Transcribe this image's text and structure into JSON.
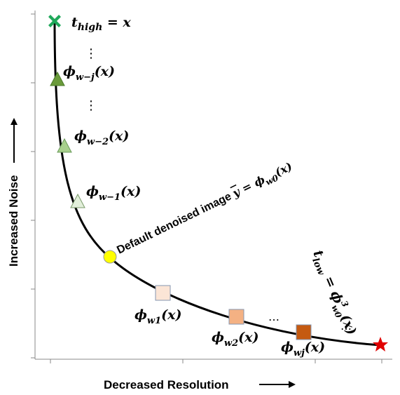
{
  "axes": {
    "x_title": "Decreased Resolution",
    "y_title": "Increased Noise"
  },
  "labels": {
    "t_high": "t",
    "t_high_sub": "high",
    "t_high_eq": " = x",
    "phi_wmj": "ϕ",
    "phi_wmj_sub": "w−j",
    "phi_wmj_arg": "(x)",
    "phi_wm2": "ϕ",
    "phi_wm2_sub": "w−2",
    "phi_wm2_arg": "(x)",
    "phi_wm1": "ϕ",
    "phi_wm1_sub": "w−1",
    "phi_wm1_arg": "(x)",
    "default_text": "Default denoised image ",
    "default_ybar": "y",
    "default_eq": " = ϕ",
    "default_sub": "w0",
    "default_arg": "(x)",
    "phi_w1": "ϕ",
    "phi_w1_sub": "w1",
    "phi_w1_arg": "(x)",
    "phi_w2": "ϕ",
    "phi_w2_sub": "w2",
    "phi_w2_arg": "(x)",
    "phi_wj": "ϕ",
    "phi_wj_sub": "wj",
    "phi_wj_arg": "(x)",
    "t_low": "t",
    "t_low_sub": "low",
    "t_low_eq": " = ",
    "t_low_phi": "ϕ",
    "t_low_sub2": "w0",
    "t_low_sup": "3",
    "t_low_arg": "(x)",
    "ellipsis_v": "⋮",
    "ellipsis_h": "…"
  },
  "colors": {
    "curve": "#000000",
    "cross": "#1fa85a",
    "tri_dark": "#6a9a3a",
    "tri_mid": "#a8d08d",
    "tri_light": "#e2efda",
    "circle": "#ffff00",
    "sq1": "#fbe5d6",
    "sq2": "#f4b183",
    "sq3": "#c55a11",
    "star": "#e00000"
  }
}
